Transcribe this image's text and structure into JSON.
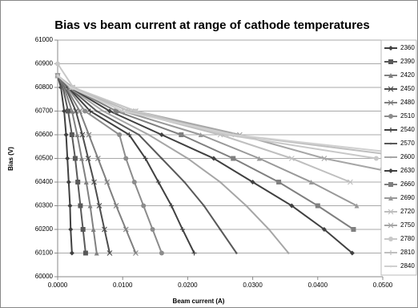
{
  "chart_data": {
    "type": "line",
    "title": "Bias vs beam current at range of cathode temperatures",
    "x_label": "Beam current (A)",
    "y_label": "Bias (V)",
    "xlim": [
      0,
      0.05
    ],
    "ylim": [
      60000,
      61000
    ],
    "xticks": [
      {
        "value": 0,
        "label": "0.0000"
      },
      {
        "value": 0.01,
        "label": "0.0100"
      },
      {
        "value": 0.02,
        "label": "0.0200"
      },
      {
        "value": 0.03,
        "label": "0.0300"
      },
      {
        "value": 0.04,
        "label": "0.0400"
      },
      {
        "value": 0.05,
        "label": "0.0500"
      }
    ],
    "yticks": [
      60000,
      60100,
      60200,
      60300,
      60400,
      60500,
      60600,
      60700,
      60800,
      60900,
      61000
    ],
    "grid": true,
    "legend": "right",
    "series": [
      {
        "name": "2360",
        "color": "#404040",
        "marker": "diamond",
        "x": [
          0,
          0.0005,
          0.001,
          0.0013,
          0.0015,
          0.0017,
          0.0019,
          0.002,
          0.0022
        ],
        "values": [
          60850,
          60800,
          60700,
          60600,
          60500,
          60400,
          60300,
          60200,
          60100
        ]
      },
      {
        "name": "2390",
        "color": "#595959",
        "marker": "square",
        "x": [
          0,
          0.0008,
          0.0016,
          0.0022,
          0.0027,
          0.0031,
          0.0035,
          0.0039,
          0.0043
        ],
        "values": [
          60850,
          60800,
          60700,
          60600,
          60500,
          60400,
          60300,
          60200,
          60100
        ]
      },
      {
        "name": "2420",
        "color": "#808080",
        "marker": "triangle",
        "x": [
          0,
          0.001,
          0.0022,
          0.003,
          0.0037,
          0.0044,
          0.005,
          0.0055,
          0.006
        ],
        "values": [
          60850,
          60800,
          60700,
          60600,
          60500,
          60400,
          60300,
          60200,
          60100
        ]
      },
      {
        "name": "2450",
        "color": "#4d4d4d",
        "marker": "x",
        "x": [
          0,
          0.0012,
          0.0028,
          0.0038,
          0.0047,
          0.0056,
          0.0064,
          0.0072,
          0.008
        ],
        "values": [
          60850,
          60800,
          60700,
          60600,
          60500,
          60400,
          60300,
          60200,
          60100
        ]
      },
      {
        "name": "2480",
        "color": "#7f7f7f",
        "marker": "x",
        "x": [
          0,
          0.0013,
          0.0034,
          0.0048,
          0.0062,
          0.0076,
          0.009,
          0.0105,
          0.012
        ],
        "values": [
          60850,
          60800,
          60700,
          60600,
          60500,
          60400,
          60300,
          60200,
          60100
        ]
      },
      {
        "name": "2510",
        "color": "#8c8c8c",
        "marker": "circle",
        "x": [
          0,
          0.0015,
          0.0042,
          0.0095,
          0.0105,
          0.0118,
          0.0132,
          0.0146,
          0.016
        ],
        "values": [
          60850,
          60800,
          60700,
          60600,
          60500,
          60400,
          60300,
          60200,
          60100
        ]
      },
      {
        "name": "2540",
        "color": "#404040",
        "marker": "plus",
        "x": [
          0,
          0.0016,
          0.005,
          0.011,
          0.0135,
          0.0155,
          0.0175,
          0.0192,
          0.021
        ],
        "values": [
          60850,
          60800,
          60700,
          60600,
          60500,
          60400,
          60300,
          60200,
          60100
        ]
      },
      {
        "name": "2570",
        "color": "#595959",
        "marker": "none",
        "x": [
          0,
          0.0017,
          0.006,
          0.0125,
          0.016,
          0.0195,
          0.0225,
          0.025,
          0.0275
        ],
        "values": [
          60850,
          60800,
          60700,
          60600,
          60500,
          60400,
          60300,
          60200,
          60100
        ]
      },
      {
        "name": "2600",
        "color": "#a6a6a6",
        "marker": "none",
        "x": [
          0,
          0.0018,
          0.007,
          0.014,
          0.02,
          0.025,
          0.029,
          0.0325,
          0.0355
        ],
        "values": [
          60850,
          60800,
          60700,
          60600,
          60500,
          60400,
          60300,
          60200,
          60100
        ]
      },
      {
        "name": "2630",
        "color": "#404040",
        "marker": "diamond",
        "x": [
          0,
          0.0019,
          0.008,
          0.016,
          0.024,
          0.03,
          0.036,
          0.041,
          0.0453
        ],
        "values": [
          60850,
          60800,
          60700,
          60600,
          60500,
          60400,
          60300,
          60200,
          60100
        ]
      },
      {
        "name": "2660",
        "color": "#7f7f7f",
        "marker": "square",
        "x": [
          0,
          0.002,
          0.009,
          0.019,
          0.027,
          0.034,
          0.04,
          0.0455
        ],
        "values": [
          60850,
          60800,
          60700,
          60600,
          60500,
          60400,
          60300,
          60200
        ]
      },
      {
        "name": "2690",
        "color": "#999999",
        "marker": "triangle",
        "x": [
          0,
          0.0021,
          0.01,
          0.022,
          0.031,
          0.039,
          0.046
        ],
        "values": [
          60850,
          60800,
          60700,
          60600,
          60500,
          60400,
          60300
        ]
      },
      {
        "name": "2720",
        "color": "#bfbfbf",
        "marker": "x",
        "x": [
          0,
          0.0022,
          0.011,
          0.025,
          0.036,
          0.045
        ],
        "values": [
          60850,
          60800,
          60700,
          60600,
          60500,
          60400
        ]
      },
      {
        "name": "2750",
        "color": "#a6a6a6",
        "marker": "x",
        "x": [
          0,
          0.0023,
          0.012,
          0.028,
          0.041,
          0.05
        ],
        "values": [
          60850,
          60800,
          60700,
          60600,
          60500,
          60450
        ]
      },
      {
        "name": "2780",
        "color": "#c8c8c8",
        "marker": "circle",
        "x": [
          0,
          0.0024,
          0.012,
          0.026,
          0.049
        ],
        "values": [
          60900,
          60800,
          60700,
          60600,
          60500
        ]
      },
      {
        "name": "2810",
        "color": "#bfbfbf",
        "marker": "plus",
        "x": [
          0,
          0.002,
          0.011,
          0.027,
          0.05
        ],
        "values": [
          60850,
          60800,
          60700,
          60600,
          60520
        ]
      },
      {
        "name": "2840",
        "color": "#d0d0d0",
        "marker": "none",
        "x": [
          0,
          0.002,
          0.01,
          0.027,
          0.05
        ],
        "values": [
          60850,
          60800,
          60700,
          60600,
          60530
        ]
      }
    ]
  }
}
